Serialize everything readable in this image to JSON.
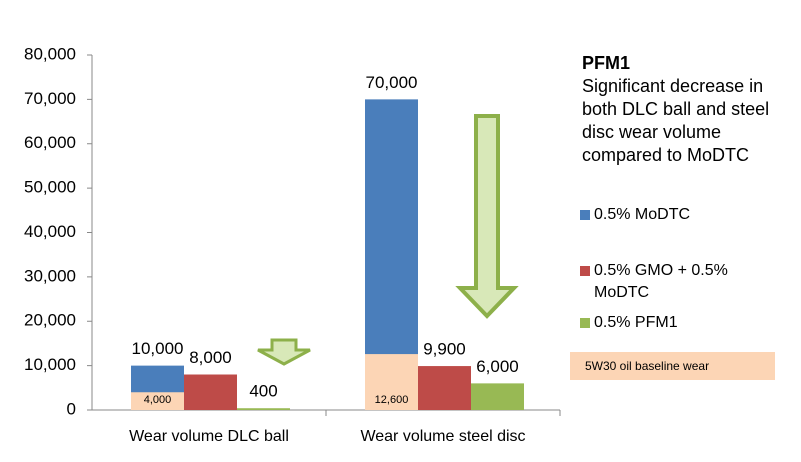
{
  "chart_data": {
    "type": "bar",
    "categories": [
      "Wear volume DLC ball",
      "Wear volume steel disc"
    ],
    "series": [
      {
        "name": "0.5% MoDTC",
        "color": "#4a7ebb",
        "values": [
          10000,
          70000
        ],
        "value_labels": [
          "10,000",
          "70,000"
        ]
      },
      {
        "name": "0.5% GMO + 0.5% MoDTC",
        "color": "#be4b48",
        "values": [
          8000,
          9900
        ],
        "value_labels": [
          "8,000",
          "9,900"
        ]
      },
      {
        "name": "0.5% PFM1",
        "color": "#98b954",
        "values": [
          400,
          6000
        ],
        "value_labels": [
          "400",
          "6,000"
        ]
      }
    ],
    "baseline": {
      "name": "5W30 oil baseline wear",
      "color": "#fcd5b5",
      "values": [
        4000,
        12600
      ],
      "value_labels": [
        "4,000",
        "12,600"
      ]
    },
    "ylim": [
      0,
      80000
    ],
    "yticks": [
      0,
      {
        "value": 10000,
        "label": "10,000"
      },
      {
        "value": 20000,
        "label": "20,000"
      },
      {
        "value": 30000,
        "label": "30,000"
      },
      {
        "value": 40000,
        "label": "40,000"
      },
      {
        "value": 50000,
        "label": "50,000"
      },
      {
        "value": 60000,
        "label": "60,000"
      },
      {
        "value": 70000,
        "label": "70,000"
      },
      {
        "value": 80000,
        "label": "80,000"
      }
    ],
    "grid": false,
    "annotation": {
      "title": "PFM1",
      "text": "Significant decrease in both DLC ball and steel disc wear volume compared to MoDTC"
    }
  }
}
